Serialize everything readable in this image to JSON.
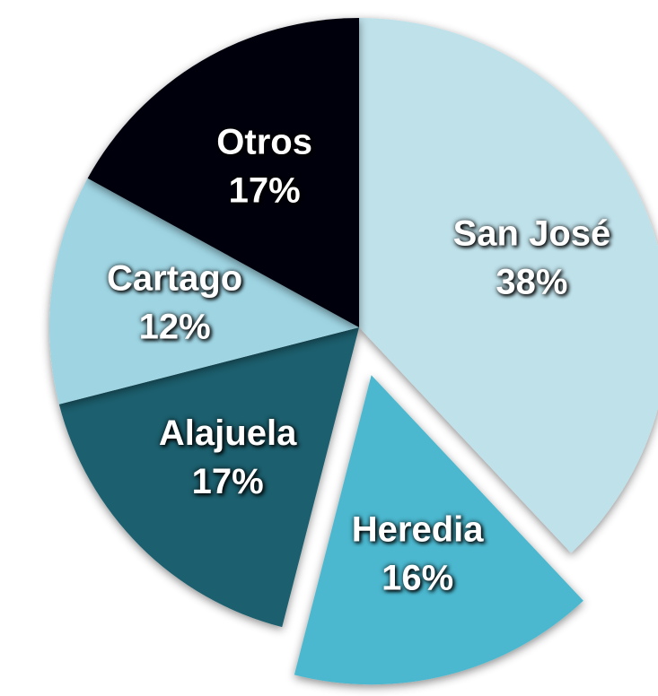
{
  "chart_data": {
    "type": "pie",
    "categories": [
      "San José",
      "Heredia",
      "Alajuela",
      "Cartago",
      "Otros"
    ],
    "values": [
      38,
      16,
      17,
      12,
      17
    ],
    "value_labels": [
      "38%",
      "16%",
      "17%",
      "12%",
      "17%"
    ],
    "colors": [
      "#bfe1ea",
      "#4cb8cf",
      "#1e5f6e",
      "#9fd5e3",
      "#050510"
    ],
    "explode": [
      false,
      true,
      false,
      false,
      false
    ]
  }
}
